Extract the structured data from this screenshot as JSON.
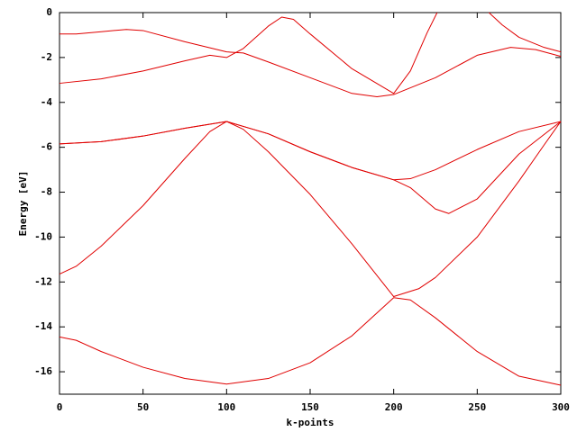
{
  "chart_data": {
    "type": "line",
    "xlabel": "k-points",
    "ylabel": "Energy [eV]",
    "xlim": [
      0,
      300
    ],
    "ylim": [
      -17,
      0
    ],
    "xticks": [
      0,
      50,
      100,
      150,
      200,
      250,
      300
    ],
    "yticks": [
      0,
      -2,
      -4,
      -6,
      -8,
      -10,
      -12,
      -14,
      -16
    ],
    "series": [
      {
        "color": "#e00000",
        "x": [
          0,
          10,
          25,
          50,
          75,
          100,
          125,
          150,
          175,
          200,
          210,
          225,
          250,
          275,
          300
        ],
        "values": [
          -14.45,
          -14.6,
          -15.1,
          -15.8,
          -16.3,
          -16.55,
          -16.3,
          -15.6,
          -14.4,
          -12.7,
          -12.8,
          -13.6,
          -15.1,
          -16.2,
          -16.6
        ]
      },
      {
        "color": "#e00000",
        "x": [
          0,
          10,
          25,
          50,
          75,
          90,
          100,
          110,
          125,
          150,
          175,
          200,
          215,
          225,
          250,
          275,
          290,
          300
        ],
        "values": [
          -11.65,
          -11.3,
          -10.4,
          -8.6,
          -6.5,
          -5.3,
          -4.85,
          -5.2,
          -6.2,
          -8.1,
          -10.3,
          -12.65,
          -12.3,
          -11.8,
          -10.0,
          -7.5,
          -5.9,
          -4.85
        ]
      },
      {
        "color": "#e00000",
        "x": [
          0,
          25,
          50,
          75,
          100,
          125,
          150,
          175,
          200,
          210,
          225,
          233,
          250,
          275,
          300
        ],
        "values": [
          -5.85,
          -5.75,
          -5.5,
          -5.15,
          -4.85,
          -5.4,
          -6.2,
          -6.9,
          -7.45,
          -7.8,
          -8.75,
          -8.95,
          -8.3,
          -6.3,
          -4.85
        ]
      },
      {
        "color": "#e00000",
        "x": [
          0,
          25,
          50,
          75,
          100,
          125,
          150,
          175,
          200,
          210,
          225,
          250,
          275,
          300
        ],
        "values": [
          -5.85,
          -5.75,
          -5.5,
          -5.15,
          -4.85,
          -5.4,
          -6.2,
          -6.9,
          -7.45,
          -7.4,
          -7.0,
          -6.1,
          -5.3,
          -4.85
        ]
      },
      {
        "color": "#e00000",
        "x": [
          0,
          25,
          50,
          75,
          90,
          100,
          110,
          125,
          133,
          140,
          150,
          175,
          200,
          210,
          220,
          226
        ],
        "values": [
          -3.15,
          -2.95,
          -2.6,
          -2.15,
          -1.9,
          -2.0,
          -1.6,
          -0.6,
          -0.2,
          -0.3,
          -0.95,
          -2.5,
          -3.6,
          -2.6,
          -0.9,
          0
        ]
      },
      {
        "color": "#e00000",
        "x": [
          0,
          10,
          25,
          40,
          50,
          75,
          100,
          110,
          125,
          150,
          175,
          190,
          200,
          225,
          250,
          270,
          285,
          300
        ],
        "values": [
          -0.95,
          -0.95,
          -0.85,
          -0.75,
          -0.8,
          -1.3,
          -1.75,
          -1.8,
          -2.2,
          -2.9,
          -3.6,
          -3.75,
          -3.65,
          -2.9,
          -1.9,
          -1.55,
          -1.65,
          -1.95
        ]
      },
      {
        "color": "#e00000",
        "x": [
          257,
          265,
          275,
          290,
          300
        ],
        "values": [
          0,
          -0.55,
          -1.1,
          -1.55,
          -1.75
        ]
      }
    ]
  }
}
